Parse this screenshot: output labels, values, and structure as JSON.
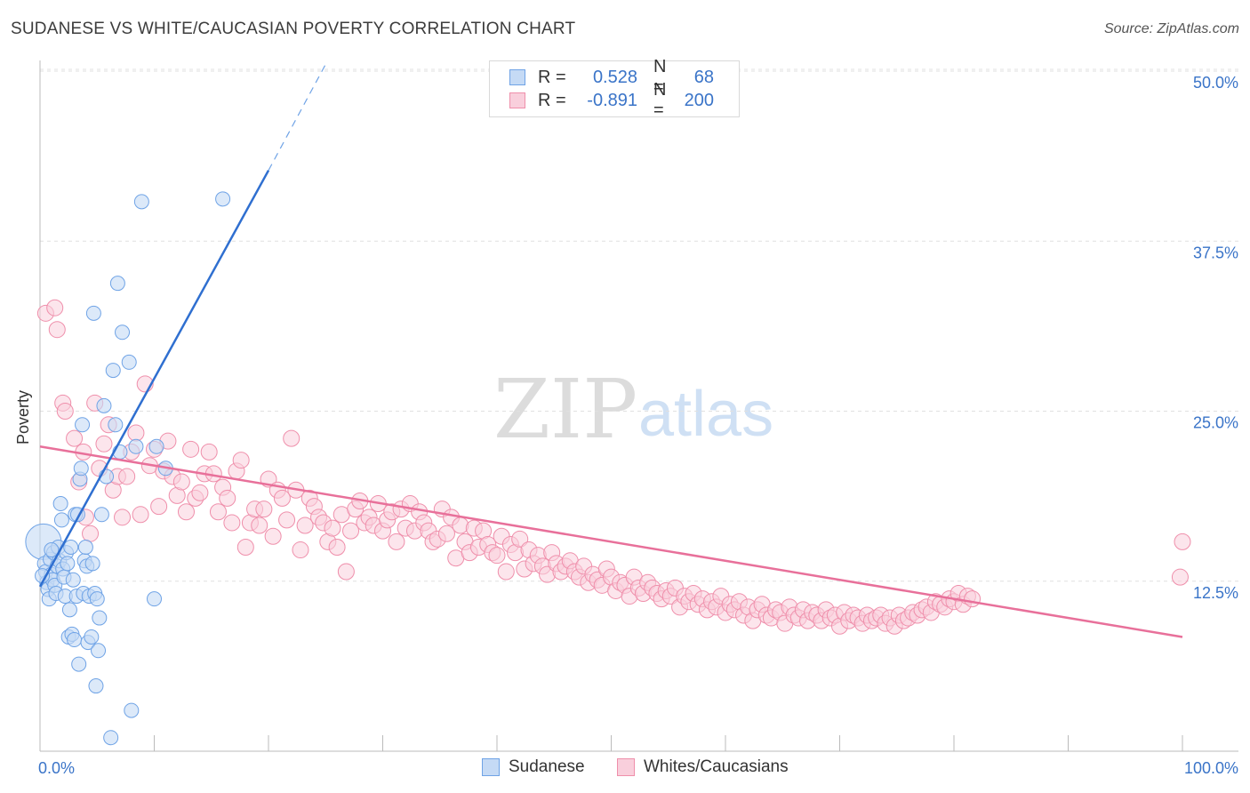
{
  "title": "SUDANESE VS WHITE/CAUCASIAN POVERTY CORRELATION CHART",
  "source": "Source: ZipAtlas.com",
  "watermark": {
    "zip": "ZIP",
    "atlas": "atlas"
  },
  "legend": {
    "rows": [
      {
        "r_label": "R =",
        "r_value": "0.528",
        "n_label": "N =",
        "n_value": "68",
        "color": "#6fa3e6",
        "fill": "#c5daf5"
      },
      {
        "r_label": "R =",
        "r_value": "-0.891",
        "n_label": "N =",
        "n_value": "200",
        "color": "#ef8fab",
        "fill": "#f9cfdc"
      }
    ]
  },
  "chart_data": {
    "type": "scatter",
    "title": "SUDANESE VS WHITE/CAUCASIAN POVERTY CORRELATION CHART",
    "xlabel": "",
    "ylabel": "Poverty",
    "xlim": [
      0,
      100
    ],
    "ylim": [
      0,
      50
    ],
    "x_tick_labels": [
      "0.0%",
      "100.0%"
    ],
    "y_ticks": [
      12.5,
      25.0,
      37.5,
      50.0
    ],
    "y_tick_labels": [
      "12.5%",
      "25.0%",
      "37.5%",
      "50.0%"
    ],
    "grid": "horizontal dashed",
    "legend_position": "top-center",
    "series": [
      {
        "name": "Sudanese",
        "color": "#6fa3e6",
        "fill": "#c5daf5",
        "trend": {
          "x": [
            0,
            20
          ],
          "y": [
            12.1,
            42.7
          ],
          "dashed_to": [
            25,
            50.5
          ]
        },
        "points": [
          [
            0.3,
            15.4
          ],
          [
            0.4,
            13.8
          ],
          [
            0.5,
            13.2
          ],
          [
            0.6,
            12.4
          ],
          [
            0.7,
            11.9
          ],
          [
            0.8,
            11.2
          ],
          [
            0.9,
            14.1
          ],
          [
            1.0,
            13.0
          ],
          [
            1.1,
            12.6
          ],
          [
            1.2,
            14.6
          ],
          [
            1.3,
            12.2
          ],
          [
            1.4,
            11.6
          ],
          [
            1.5,
            13.6
          ],
          [
            1.6,
            15.0
          ],
          [
            1.7,
            14.0
          ],
          [
            1.8,
            18.2
          ],
          [
            1.9,
            17.0
          ],
          [
            2.0,
            13.4
          ],
          [
            2.1,
            12.8
          ],
          [
            2.2,
            11.4
          ],
          [
            2.3,
            14.6
          ],
          [
            2.4,
            13.8
          ],
          [
            2.5,
            8.4
          ],
          [
            2.6,
            10.4
          ],
          [
            2.7,
            15.0
          ],
          [
            2.8,
            8.6
          ],
          [
            2.9,
            12.6
          ],
          [
            3.0,
            8.2
          ],
          [
            3.1,
            17.4
          ],
          [
            3.2,
            11.4
          ],
          [
            3.3,
            17.4
          ],
          [
            3.4,
            6.4
          ],
          [
            3.5,
            20.0
          ],
          [
            3.6,
            20.8
          ],
          [
            3.7,
            24.0
          ],
          [
            3.8,
            11.6
          ],
          [
            3.9,
            14.0
          ],
          [
            4.0,
            15.0
          ],
          [
            4.1,
            13.6
          ],
          [
            4.2,
            8.0
          ],
          [
            4.3,
            11.4
          ],
          [
            4.5,
            8.4
          ],
          [
            4.6,
            13.8
          ],
          [
            4.7,
            32.2
          ],
          [
            4.8,
            11.6
          ],
          [
            4.9,
            4.8
          ],
          [
            5.0,
            11.2
          ],
          [
            5.1,
            7.4
          ],
          [
            5.2,
            9.8
          ],
          [
            5.4,
            17.4
          ],
          [
            5.6,
            25.4
          ],
          [
            5.8,
            20.2
          ],
          [
            6.2,
            1.0
          ],
          [
            6.4,
            28.0
          ],
          [
            6.6,
            24.0
          ],
          [
            6.8,
            34.4
          ],
          [
            7.0,
            22.0
          ],
          [
            7.2,
            30.8
          ],
          [
            7.8,
            28.6
          ],
          [
            8.0,
            3.0
          ],
          [
            8.4,
            22.4
          ],
          [
            8.9,
            40.4
          ],
          [
            10.0,
            11.2
          ],
          [
            10.2,
            22.4
          ],
          [
            11.0,
            20.8
          ],
          [
            16.0,
            40.6
          ],
          [
            0.2,
            12.9
          ],
          [
            1.0,
            14.8
          ]
        ]
      },
      {
        "name": "Whites/Caucasians",
        "color": "#ef8fab",
        "fill": "#f9cfdc",
        "trend": {
          "x": [
            0,
            100
          ],
          "y": [
            22.4,
            8.4
          ]
        },
        "points": [
          [
            0.5,
            32.2
          ],
          [
            1.3,
            32.6
          ],
          [
            1.5,
            31.0
          ],
          [
            2.0,
            25.6
          ],
          [
            2.2,
            25.0
          ],
          [
            3.0,
            23.0
          ],
          [
            3.4,
            19.8
          ],
          [
            3.8,
            22.0
          ],
          [
            4.0,
            17.2
          ],
          [
            4.4,
            16.0
          ],
          [
            4.8,
            25.6
          ],
          [
            5.2,
            20.8
          ],
          [
            5.6,
            22.6
          ],
          [
            6.0,
            24.0
          ],
          [
            6.4,
            19.2
          ],
          [
            6.8,
            20.2
          ],
          [
            7.2,
            17.2
          ],
          [
            7.6,
            20.2
          ],
          [
            8.0,
            22.0
          ],
          [
            8.4,
            23.4
          ],
          [
            8.8,
            17.4
          ],
          [
            9.2,
            27.0
          ],
          [
            9.6,
            21.0
          ],
          [
            10.0,
            22.2
          ],
          [
            10.4,
            18.0
          ],
          [
            10.8,
            20.6
          ],
          [
            11.2,
            22.8
          ],
          [
            11.6,
            20.2
          ],
          [
            12.0,
            18.8
          ],
          [
            12.4,
            19.8
          ],
          [
            12.8,
            17.6
          ],
          [
            13.2,
            22.2
          ],
          [
            13.6,
            18.6
          ],
          [
            14.0,
            19.0
          ],
          [
            14.4,
            20.4
          ],
          [
            14.8,
            22.0
          ],
          [
            15.2,
            20.4
          ],
          [
            15.6,
            17.6
          ],
          [
            16.0,
            19.4
          ],
          [
            16.4,
            18.6
          ],
          [
            16.8,
            16.8
          ],
          [
            17.2,
            20.6
          ],
          [
            17.6,
            21.4
          ],
          [
            18.0,
            15.0
          ],
          [
            18.4,
            16.8
          ],
          [
            18.8,
            17.8
          ],
          [
            19.2,
            16.6
          ],
          [
            19.6,
            17.8
          ],
          [
            20.0,
            20.0
          ],
          [
            20.4,
            15.8
          ],
          [
            20.8,
            19.2
          ],
          [
            21.2,
            18.6
          ],
          [
            21.6,
            17.0
          ],
          [
            22.0,
            23.0
          ],
          [
            22.4,
            19.2
          ],
          [
            22.8,
            14.8
          ],
          [
            23.2,
            16.6
          ],
          [
            23.6,
            18.6
          ],
          [
            24.0,
            18.0
          ],
          [
            24.4,
            17.2
          ],
          [
            24.8,
            16.8
          ],
          [
            25.2,
            15.4
          ],
          [
            25.6,
            16.4
          ],
          [
            26.0,
            15.0
          ],
          [
            26.4,
            17.4
          ],
          [
            26.8,
            13.2
          ],
          [
            27.2,
            16.2
          ],
          [
            27.6,
            17.8
          ],
          [
            28.0,
            18.4
          ],
          [
            28.4,
            16.8
          ],
          [
            28.8,
            17.2
          ],
          [
            29.2,
            16.6
          ],
          [
            29.6,
            18.2
          ],
          [
            30.0,
            16.2
          ],
          [
            30.4,
            17.0
          ],
          [
            30.8,
            17.6
          ],
          [
            31.2,
            15.4
          ],
          [
            31.6,
            17.8
          ],
          [
            32.0,
            16.4
          ],
          [
            32.4,
            18.2
          ],
          [
            32.8,
            16.2
          ],
          [
            33.2,
            17.6
          ],
          [
            33.6,
            16.8
          ],
          [
            34.0,
            16.2
          ],
          [
            34.4,
            15.4
          ],
          [
            34.8,
            15.6
          ],
          [
            35.2,
            17.8
          ],
          [
            35.6,
            16.0
          ],
          [
            36.0,
            17.2
          ],
          [
            36.4,
            14.2
          ],
          [
            36.8,
            16.6
          ],
          [
            37.2,
            15.4
          ],
          [
            37.6,
            14.6
          ],
          [
            38.0,
            16.4
          ],
          [
            38.4,
            15.0
          ],
          [
            38.8,
            16.2
          ],
          [
            39.2,
            15.2
          ],
          [
            39.6,
            14.6
          ],
          [
            40.0,
            14.4
          ],
          [
            40.4,
            15.8
          ],
          [
            40.8,
            13.2
          ],
          [
            41.2,
            15.2
          ],
          [
            41.6,
            14.6
          ],
          [
            42.0,
            15.6
          ],
          [
            42.4,
            13.4
          ],
          [
            42.8,
            14.8
          ],
          [
            43.2,
            13.8
          ],
          [
            43.6,
            14.4
          ],
          [
            44.0,
            13.6
          ],
          [
            44.4,
            13.0
          ],
          [
            44.8,
            14.6
          ],
          [
            45.2,
            13.8
          ],
          [
            45.6,
            13.2
          ],
          [
            46.0,
            13.6
          ],
          [
            46.4,
            14.0
          ],
          [
            46.8,
            13.2
          ],
          [
            47.2,
            12.8
          ],
          [
            47.6,
            13.6
          ],
          [
            48.0,
            12.4
          ],
          [
            48.4,
            13.0
          ],
          [
            48.8,
            12.6
          ],
          [
            49.2,
            12.2
          ],
          [
            49.6,
            13.4
          ],
          [
            50.0,
            12.8
          ],
          [
            50.4,
            11.8
          ],
          [
            50.8,
            12.4
          ],
          [
            51.2,
            12.2
          ],
          [
            51.6,
            11.4
          ],
          [
            52.0,
            12.8
          ],
          [
            52.4,
            12.0
          ],
          [
            52.8,
            11.6
          ],
          [
            53.2,
            12.4
          ],
          [
            53.6,
            12.0
          ],
          [
            54.0,
            11.6
          ],
          [
            54.4,
            11.2
          ],
          [
            54.8,
            11.8
          ],
          [
            55.2,
            11.4
          ],
          [
            55.6,
            12.0
          ],
          [
            56.0,
            10.6
          ],
          [
            56.4,
            11.4
          ],
          [
            56.8,
            11.0
          ],
          [
            57.2,
            11.6
          ],
          [
            57.6,
            10.8
          ],
          [
            58.0,
            11.2
          ],
          [
            58.4,
            10.4
          ],
          [
            58.8,
            11.0
          ],
          [
            59.2,
            10.6
          ],
          [
            59.6,
            11.4
          ],
          [
            60.0,
            10.2
          ],
          [
            60.4,
            10.8
          ],
          [
            60.8,
            10.4
          ],
          [
            61.2,
            11.0
          ],
          [
            61.6,
            10.0
          ],
          [
            62.0,
            10.6
          ],
          [
            62.4,
            9.6
          ],
          [
            62.8,
            10.4
          ],
          [
            63.2,
            10.8
          ],
          [
            63.6,
            10.0
          ],
          [
            64.0,
            9.8
          ],
          [
            64.4,
            10.4
          ],
          [
            64.8,
            10.2
          ],
          [
            65.2,
            9.4
          ],
          [
            65.6,
            10.6
          ],
          [
            66.0,
            10.0
          ],
          [
            66.4,
            9.8
          ],
          [
            66.8,
            10.4
          ],
          [
            67.2,
            9.6
          ],
          [
            67.6,
            10.2
          ],
          [
            68.0,
            10.0
          ],
          [
            68.4,
            9.6
          ],
          [
            68.8,
            10.4
          ],
          [
            69.2,
            9.8
          ],
          [
            69.6,
            10.0
          ],
          [
            70.0,
            9.2
          ],
          [
            70.4,
            10.2
          ],
          [
            70.8,
            9.6
          ],
          [
            71.2,
            10.0
          ],
          [
            71.6,
            9.8
          ],
          [
            72.0,
            9.4
          ],
          [
            72.4,
            10.0
          ],
          [
            72.8,
            9.6
          ],
          [
            73.2,
            9.8
          ],
          [
            73.6,
            10.0
          ],
          [
            74.0,
            9.4
          ],
          [
            74.4,
            9.8
          ],
          [
            74.8,
            9.2
          ],
          [
            75.2,
            10.0
          ],
          [
            75.6,
            9.6
          ],
          [
            76.0,
            9.8
          ],
          [
            76.4,
            10.2
          ],
          [
            76.8,
            10.0
          ],
          [
            77.2,
            10.4
          ],
          [
            77.6,
            10.6
          ],
          [
            78.0,
            10.2
          ],
          [
            78.4,
            11.0
          ],
          [
            78.8,
            10.8
          ],
          [
            79.2,
            10.6
          ],
          [
            79.6,
            11.2
          ],
          [
            80.0,
            11.0
          ],
          [
            80.4,
            11.6
          ],
          [
            80.8,
            10.8
          ],
          [
            81.2,
            11.4
          ],
          [
            81.6,
            11.2
          ],
          [
            99.8,
            12.8
          ],
          [
            100.0,
            15.4
          ]
        ]
      }
    ]
  },
  "bottom_legend": [
    "Sudanese",
    "Whites/Caucasians"
  ]
}
